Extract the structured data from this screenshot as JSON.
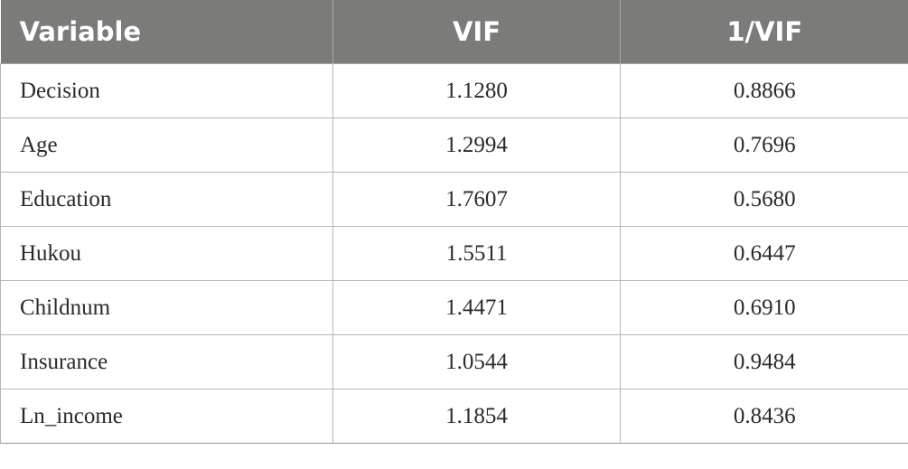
{
  "table": {
    "headers": [
      "Variable",
      "VIF",
      "1/VIF"
    ],
    "rows": [
      [
        "Decision",
        "1.1280",
        "0.8866"
      ],
      [
        "Age",
        "1.2994",
        "0.7696"
      ],
      [
        "Education",
        "1.7607",
        "0.5680"
      ],
      [
        "Hukou",
        "1.5511",
        "0.6447"
      ],
      [
        "Childnum",
        "1.4471",
        "0.6910"
      ],
      [
        "Insurance",
        "1.0544",
        "0.9484"
      ],
      [
        "Ln_income",
        "1.1854",
        "0.8436"
      ]
    ]
  },
  "colors": {
    "header_background": "#7b7b79",
    "header_text": "#ffffff",
    "grid_lines": "#b5b5b5"
  }
}
